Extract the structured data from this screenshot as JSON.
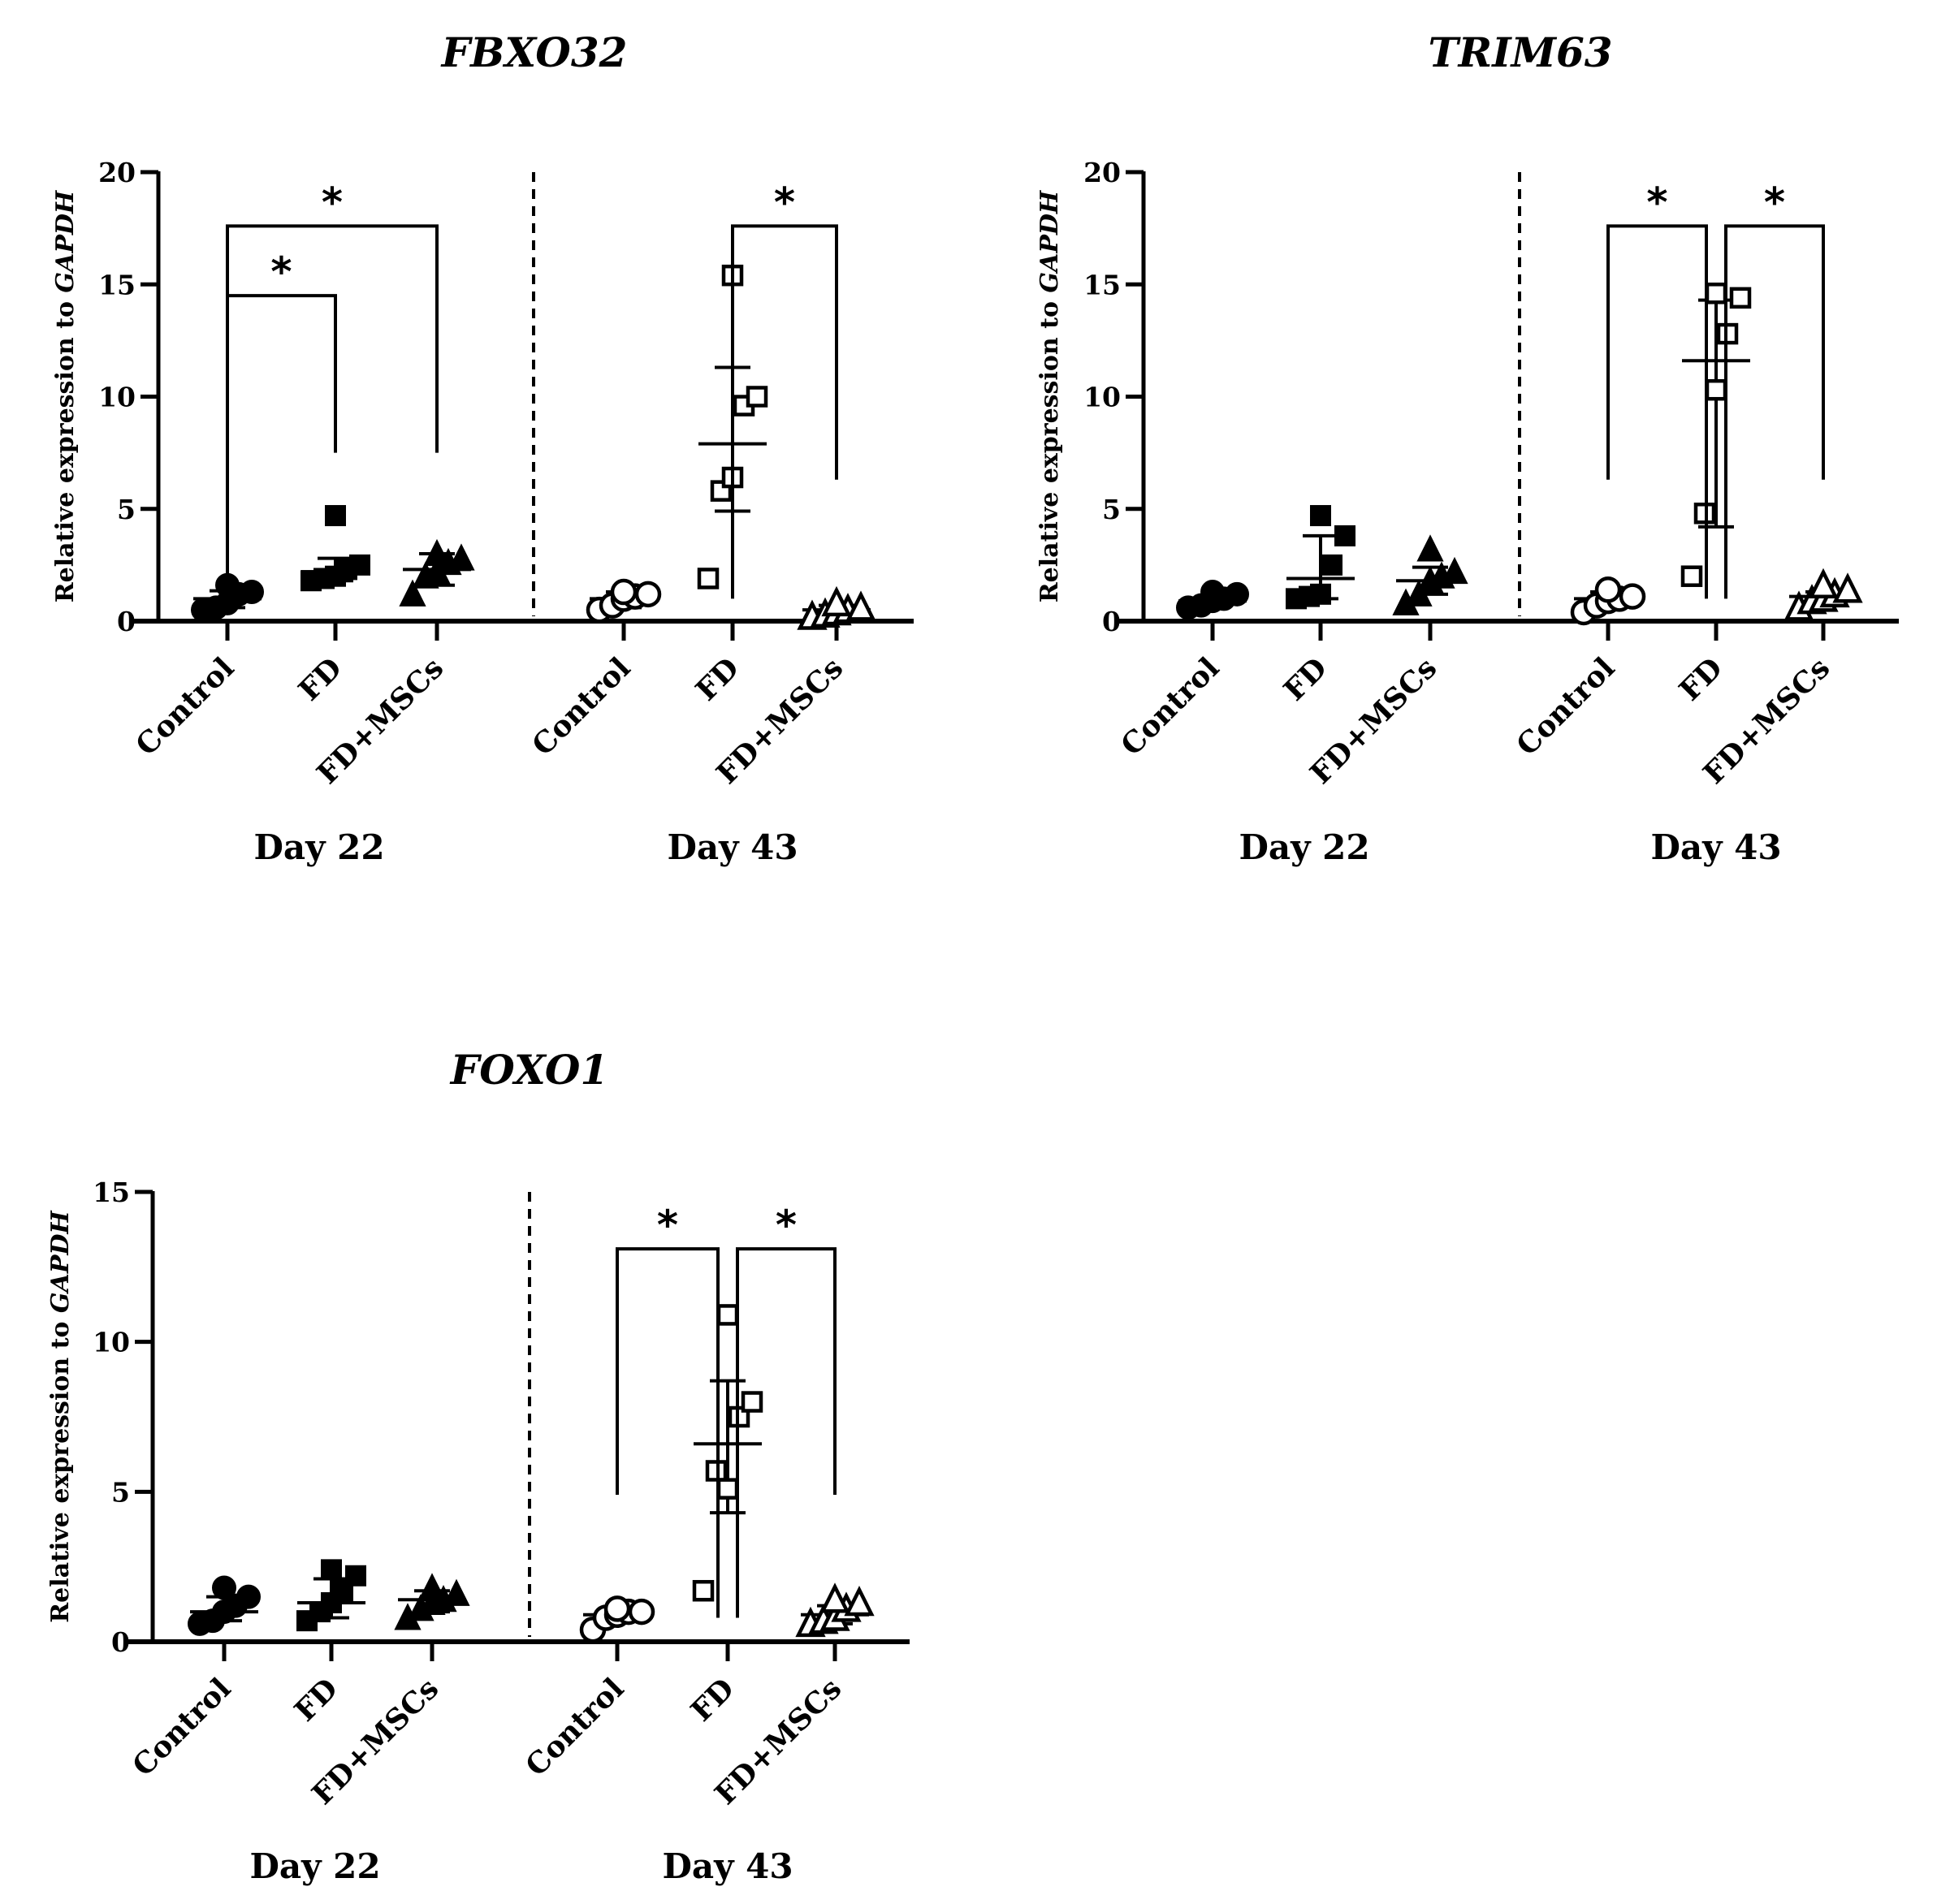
{
  "chart_data": [
    {
      "type": "scatter",
      "title": "FBXO32",
      "ylabel_prefix": "Relative expression to ",
      "ylabel_gene": "GAPDH",
      "ylim": [
        0,
        20
      ],
      "yticks": [
        0,
        5,
        10,
        15,
        20
      ],
      "groups": [
        "Day 22",
        "Day 43"
      ],
      "categories": [
        "Control",
        "FD",
        "FD+MSCs"
      ],
      "series": [
        {
          "group": "Day 22",
          "category": "Control",
          "marker": "circle",
          "filled": true,
          "points": [
            0.5,
            0.6,
            0.8,
            1.2,
            1.3,
            1.6
          ],
          "mean": 1.0,
          "sd": [
            0.6,
            1.35
          ]
        },
        {
          "group": "Day 22",
          "category": "FD",
          "marker": "square",
          "filled": true,
          "points": [
            1.8,
            1.9,
            2.0,
            2.3,
            2.5,
            4.7
          ],
          "mean": 2.2,
          "sd": [
            1.8,
            2.8
          ]
        },
        {
          "group": "Day 22",
          "category": "FD+MSCs",
          "marker": "triangle",
          "filled": true,
          "points": [
            1.2,
            2.0,
            2.2,
            2.6,
            2.8,
            3.0
          ],
          "mean": 2.3,
          "sd": [
            1.6,
            3.0
          ]
        },
        {
          "group": "Day 43",
          "category": "Control",
          "marker": "circle",
          "filled": false,
          "points": [
            0.5,
            0.7,
            1.0,
            1.1,
            1.2,
            1.3
          ],
          "mean": 1.0,
          "sd": [
            0.6,
            1.3
          ]
        },
        {
          "group": "Day 43",
          "category": "FD",
          "marker": "square",
          "filled": false,
          "points": [
            1.9,
            5.8,
            6.4,
            9.6,
            10.0,
            15.4
          ],
          "mean": 7.9,
          "sd": [
            4.9,
            11.3
          ]
        },
        {
          "group": "Day 43",
          "category": "FD+MSCs",
          "marker": "triangle",
          "filled": false,
          "points": [
            0.2,
            0.3,
            0.4,
            0.5,
            0.6,
            0.8
          ],
          "mean": 0.5,
          "sd": [
            0.3,
            0.7
          ]
        }
      ],
      "significance": [
        {
          "group": "Day 22",
          "from": "Control",
          "to": "FD",
          "label": "*",
          "y": 14.5,
          "left_drop": 0.4,
          "right_drop": 7.5
        },
        {
          "group": "Day 22",
          "from": "Control",
          "to": "FD+MSCs",
          "label": "*",
          "y": 17.6,
          "left_drop": 1.2,
          "right_drop": 7.5
        },
        {
          "group": "Day 43",
          "from": "FD",
          "to": "FD+MSCs",
          "label": "*",
          "y": 17.6,
          "left_drop": 1.0,
          "right_drop": 6.3
        }
      ]
    },
    {
      "type": "scatter",
      "title": "TRIM63",
      "ylabel_prefix": "Relative expression to ",
      "ylabel_gene": "GAPDH",
      "ylim": [
        0,
        20
      ],
      "yticks": [
        0,
        5,
        10,
        15,
        20
      ],
      "groups": [
        "Day 22",
        "Day 43"
      ],
      "categories": [
        "Control",
        "FD",
        "FD+MSCs"
      ],
      "series": [
        {
          "group": "Day 22",
          "category": "Control",
          "marker": "circle",
          "filled": true,
          "points": [
            0.6,
            0.7,
            0.9,
            1.0,
            1.2,
            1.3
          ],
          "mean": 0.9,
          "sd": [
            0.7,
            1.1
          ]
        },
        {
          "group": "Day 22",
          "category": "FD",
          "marker": "square",
          "filled": true,
          "points": [
            1.0,
            1.1,
            1.2,
            2.5,
            3.8,
            4.7
          ],
          "mean": 1.9,
          "sd": [
            1.0,
            3.8
          ]
        },
        {
          "group": "Day 22",
          "category": "FD+MSCs",
          "marker": "triangle",
          "filled": true,
          "points": [
            0.8,
            1.2,
            1.8,
            2.0,
            2.2,
            3.2
          ],
          "mean": 1.8,
          "sd": [
            1.2,
            2.4
          ]
        },
        {
          "group": "Day 43",
          "category": "Control",
          "marker": "circle",
          "filled": false,
          "points": [
            0.4,
            0.7,
            0.9,
            1.0,
            1.1,
            1.4
          ],
          "mean": 1.0,
          "sd": [
            0.6,
            1.3
          ]
        },
        {
          "group": "Day 43",
          "category": "FD",
          "marker": "square",
          "filled": false,
          "points": [
            2.0,
            4.8,
            10.3,
            12.8,
            14.4,
            14.6
          ],
          "mean": 11.6,
          "sd": [
            4.2,
            14.3
          ]
        },
        {
          "group": "Day 43",
          "category": "FD+MSCs",
          "marker": "triangle",
          "filled": false,
          "points": [
            0.6,
            0.9,
            1.0,
            1.2,
            1.4,
            1.6
          ],
          "mean": 1.1,
          "sd": [
            0.8,
            1.3
          ]
        }
      ],
      "significance": [
        {
          "group": "Day 43",
          "from": "Control",
          "to": "FD",
          "label": "*",
          "y": 17.6,
          "left_drop": 6.3,
          "right_drop": 1.0
        },
        {
          "group": "Day 43",
          "from": "FD",
          "to": "FD+MSCs",
          "label": "*",
          "y": 17.6,
          "left_drop": 1.0,
          "right_drop": 6.3
        }
      ]
    },
    {
      "type": "scatter",
      "title": "FOXO1",
      "ylabel_prefix": "Relative expression to ",
      "ylabel_gene": "GAPDH",
      "ylim": [
        0,
        15
      ],
      "yticks": [
        0,
        5,
        10,
        15
      ],
      "groups": [
        "Day 22",
        "Day 43"
      ],
      "categories": [
        "Control",
        "FD",
        "FD+MSCs"
      ],
      "series": [
        {
          "group": "Day 22",
          "category": "Control",
          "marker": "circle",
          "filled": true,
          "points": [
            0.6,
            0.7,
            1.0,
            1.2,
            1.5,
            1.8
          ],
          "mean": 1.0,
          "sd": [
            0.7,
            1.5
          ]
        },
        {
          "group": "Day 22",
          "category": "FD",
          "marker": "square",
          "filled": true,
          "points": [
            0.7,
            1.0,
            1.3,
            1.7,
            2.2,
            2.4
          ],
          "mean": 1.3,
          "sd": [
            0.8,
            2.1
          ]
        },
        {
          "group": "Day 22",
          "category": "FD+MSCs",
          "marker": "triangle",
          "filled": true,
          "points": [
            0.8,
            1.1,
            1.3,
            1.4,
            1.6,
            1.8
          ],
          "mean": 1.4,
          "sd": [
            1.0,
            1.7
          ]
        },
        {
          "group": "Day 43",
          "category": "Control",
          "marker": "circle",
          "filled": false,
          "points": [
            0.4,
            0.8,
            0.9,
            1.0,
            1.0,
            1.1
          ],
          "mean": 0.9,
          "sd": [
            0.7,
            1.1
          ]
        },
        {
          "group": "Day 43",
          "category": "FD",
          "marker": "square",
          "filled": false,
          "points": [
            1.7,
            5.7,
            5.1,
            7.5,
            8.0,
            10.9
          ],
          "mean": 6.6,
          "sd": [
            4.3,
            8.7
          ]
        },
        {
          "group": "Day 43",
          "category": "FD+MSCs",
          "marker": "triangle",
          "filled": false,
          "points": [
            0.6,
            0.7,
            0.8,
            1.1,
            1.3,
            1.4
          ],
          "mean": 0.9,
          "sd": [
            0.6,
            1.2
          ]
        }
      ],
      "significance": [
        {
          "group": "Day 43",
          "from": "Control",
          "to": "FD",
          "label": "*",
          "y": 13.1,
          "left_drop": 4.9,
          "right_drop": 0.8
        },
        {
          "group": "Day 43",
          "from": "FD",
          "to": "FD+MSCs",
          "label": "*",
          "y": 13.1,
          "left_drop": 0.8,
          "right_drop": 4.9
        }
      ]
    }
  ]
}
